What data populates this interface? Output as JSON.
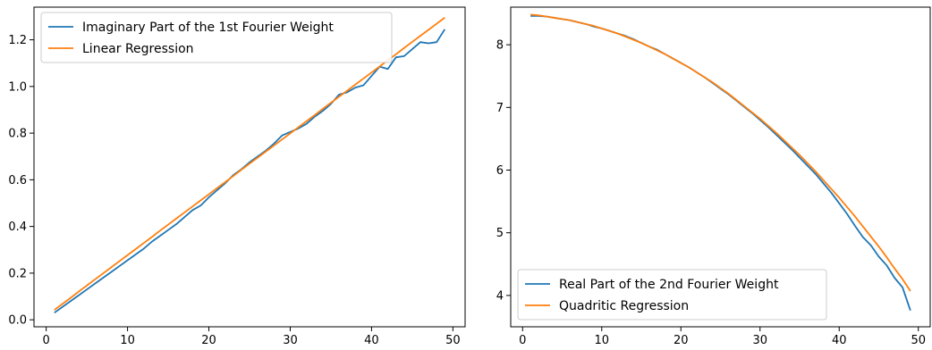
{
  "chart_data": [
    {
      "type": "line",
      "title": "",
      "xlabel": "",
      "ylabel": "",
      "xlim": [
        -1.5,
        51.5
      ],
      "ylim": [
        -0.03,
        1.34
      ],
      "xticks": [
        "0",
        "10",
        "20",
        "30",
        "40",
        "50"
      ],
      "xtick_values": [
        0,
        10,
        20,
        30,
        40,
        50
      ],
      "yticks": [
        "0.0",
        "0.2",
        "0.4",
        "0.6",
        "0.8",
        "1.0",
        "1.2"
      ],
      "ytick_values": [
        0.0,
        0.2,
        0.4,
        0.6,
        0.8,
        1.0,
        1.2
      ],
      "grid": false,
      "legend_position": "upper left",
      "x": [
        1,
        2,
        3,
        4,
        5,
        6,
        7,
        8,
        9,
        10,
        11,
        12,
        13,
        14,
        15,
        16,
        17,
        18,
        19,
        20,
        21,
        22,
        23,
        24,
        25,
        26,
        27,
        28,
        29,
        30,
        31,
        32,
        33,
        34,
        35,
        36,
        37,
        38,
        39,
        40,
        41,
        42,
        43,
        44,
        45,
        46,
        47,
        48,
        49
      ],
      "series": [
        {
          "name": "Imaginary Part of the 1st Fourier Weight",
          "color": "#1f77b4",
          "values": [
            0.03,
            0.055,
            0.08,
            0.105,
            0.13,
            0.155,
            0.18,
            0.205,
            0.23,
            0.255,
            0.28,
            0.305,
            0.335,
            0.36,
            0.385,
            0.41,
            0.44,
            0.47,
            0.49,
            0.525,
            0.555,
            0.585,
            0.62,
            0.645,
            0.675,
            0.7,
            0.725,
            0.755,
            0.79,
            0.805,
            0.82,
            0.84,
            0.87,
            0.895,
            0.925,
            0.965,
            0.975,
            0.995,
            1.005,
            1.045,
            1.085,
            1.075,
            1.125,
            1.13,
            1.16,
            1.19,
            1.185,
            1.19,
            1.245
          ]
        },
        {
          "name": "Linear Regression",
          "color": "#ff7f0e",
          "values": [
            0.042,
            0.068,
            0.094,
            0.121,
            0.147,
            0.173,
            0.199,
            0.225,
            0.251,
            0.277,
            0.303,
            0.329,
            0.355,
            0.382,
            0.408,
            0.434,
            0.46,
            0.486,
            0.512,
            0.538,
            0.564,
            0.59,
            0.616,
            0.643,
            0.669,
            0.695,
            0.721,
            0.747,
            0.773,
            0.799,
            0.825,
            0.851,
            0.877,
            0.904,
            0.93,
            0.956,
            0.982,
            1.008,
            1.034,
            1.06,
            1.086,
            1.112,
            1.138,
            1.165,
            1.191,
            1.217,
            1.243,
            1.269,
            1.295
          ]
        }
      ]
    },
    {
      "type": "line",
      "title": "",
      "xlabel": "",
      "ylabel": "",
      "xlim": [
        -1.5,
        51.5
      ],
      "ylim": [
        3.5,
        8.6
      ],
      "xticks": [
        "0",
        "10",
        "20",
        "30",
        "40",
        "50"
      ],
      "xtick_values": [
        0,
        10,
        20,
        30,
        40,
        50
      ],
      "yticks": [
        "4",
        "5",
        "6",
        "7",
        "8"
      ],
      "ytick_values": [
        4,
        5,
        6,
        7,
        8
      ],
      "grid": false,
      "legend_position": "lower left",
      "x": [
        1,
        2,
        3,
        4,
        5,
        6,
        7,
        8,
        9,
        10,
        11,
        12,
        13,
        14,
        15,
        16,
        17,
        18,
        19,
        20,
        21,
        22,
        23,
        24,
        25,
        26,
        27,
        28,
        29,
        30,
        31,
        32,
        33,
        34,
        35,
        36,
        37,
        38,
        39,
        40,
        41,
        42,
        43,
        44,
        45,
        46,
        47,
        48,
        49
      ],
      "series": [
        {
          "name": "Real Part of the 2nd Fourier Weight",
          "color": "#1f77b4",
          "values": [
            8.46,
            8.46,
            8.45,
            8.43,
            8.41,
            8.39,
            8.36,
            8.33,
            8.29,
            8.26,
            8.22,
            8.18,
            8.14,
            8.09,
            8.03,
            7.97,
            7.92,
            7.85,
            7.78,
            7.71,
            7.64,
            7.56,
            7.48,
            7.39,
            7.3,
            7.21,
            7.11,
            7.01,
            6.91,
            6.8,
            6.69,
            6.57,
            6.45,
            6.33,
            6.2,
            6.07,
            5.94,
            5.79,
            5.64,
            5.47,
            5.3,
            5.11,
            4.93,
            4.8,
            4.62,
            4.48,
            4.28,
            4.13,
            3.76
          ]
        },
        {
          "name": "Quadritic Regression",
          "color": "#ff7f0e",
          "values": [
            8.48,
            8.47,
            8.45,
            8.43,
            8.41,
            8.39,
            8.36,
            8.33,
            8.3,
            8.26,
            8.22,
            8.18,
            8.13,
            8.08,
            8.03,
            7.97,
            7.91,
            7.85,
            7.78,
            7.71,
            7.64,
            7.56,
            7.48,
            7.4,
            7.31,
            7.22,
            7.12,
            7.02,
            6.92,
            6.82,
            6.71,
            6.6,
            6.48,
            6.36,
            6.24,
            6.11,
            5.98,
            5.84,
            5.7,
            5.56,
            5.41,
            5.26,
            5.1,
            4.94,
            4.78,
            4.61,
            4.43,
            4.26,
            4.07
          ]
        }
      ]
    }
  ]
}
